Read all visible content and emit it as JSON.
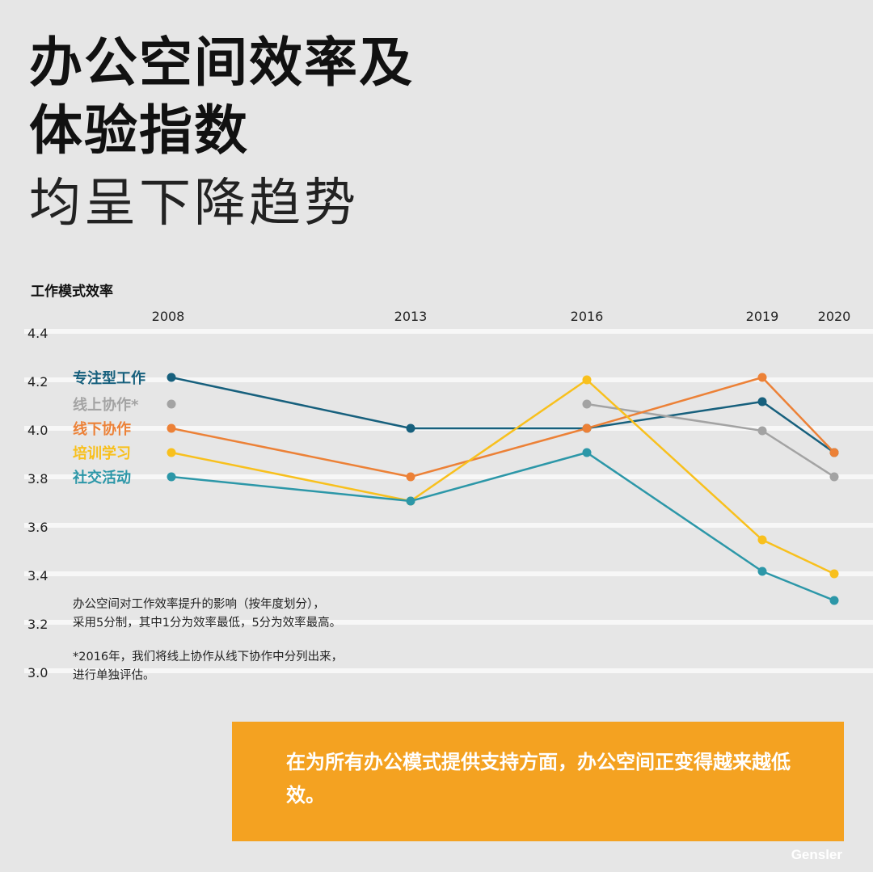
{
  "title": {
    "line1": "办公空间效率及",
    "line2": "体验指数",
    "line3": "均呈下降趋势"
  },
  "notes": {
    "scale": [
      "办公空间对工作效率提升的影响（按年度划分），",
      "采用5分制，其中1分为效率最低，5分为效率最高。"
    ],
    "footnote": [
      "*2016年，我们将线上协作从线下协作中分列出来，",
      "进行单独评估。"
    ]
  },
  "callout": "在为所有办公模式提供支持方面，办公空间正变得越来越低效。",
  "brand": "Gensler",
  "colors": {
    "background": "#e6e6e6",
    "grid": "#f7f7f7",
    "callout": "#f4a221"
  },
  "chart_data": {
    "type": "line",
    "ylabel": "工作模式效率",
    "x": [
      2008,
      2013,
      2016,
      2019,
      2020
    ],
    "ylim": [
      3.0,
      4.4
    ],
    "yticks": [
      "4.4",
      "4.2",
      "4.0",
      "3.8",
      "3.6",
      "3.4",
      "3.2",
      "3.0"
    ],
    "grid": true,
    "series": [
      {
        "name": "专注型工作",
        "color": "#17607d",
        "values": [
          4.21,
          4.0,
          4.0,
          4.11,
          3.9
        ]
      },
      {
        "name": "线上协作*",
        "color": "#a3a3a3",
        "values": [
          null,
          null,
          4.1,
          3.99,
          3.8
        ]
      },
      {
        "name": "线下协作",
        "color": "#ec8137",
        "values": [
          4.0,
          3.8,
          4.0,
          4.21,
          3.9
        ]
      },
      {
        "name": "培训学习",
        "color": "#f8c01d",
        "values": [
          3.9,
          3.7,
          4.2,
          3.54,
          3.4
        ]
      },
      {
        "name": "社交活动",
        "color": "#2c97a8",
        "values": [
          3.8,
          3.7,
          3.9,
          3.41,
          3.29
        ]
      }
    ]
  }
}
